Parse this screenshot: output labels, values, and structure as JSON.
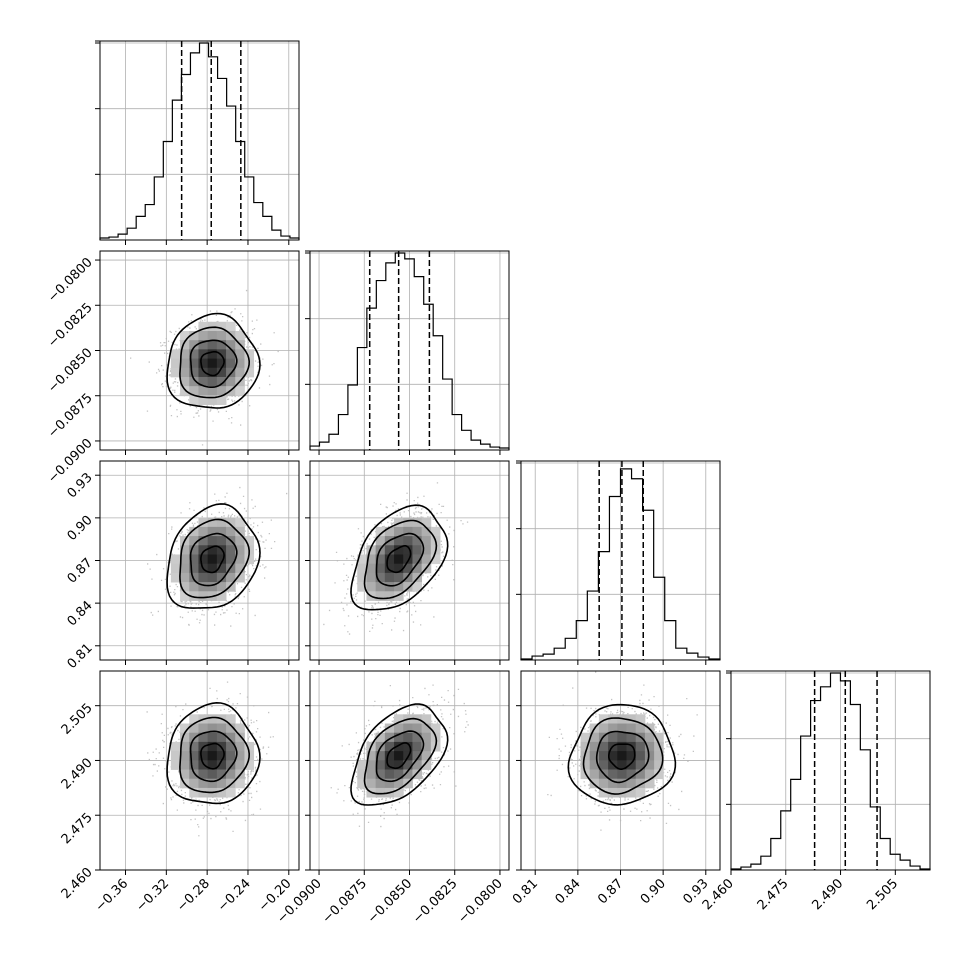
{
  "chart_data": {
    "type": "corner",
    "title": "",
    "grid": true,
    "parameters": [
      {
        "range": [
          -0.385,
          -0.19
        ],
        "ticks": [
          -0.36,
          -0.32,
          -0.28,
          -0.24,
          -0.2
        ],
        "tick_labels": [
          "−0.36",
          "−0.32",
          "−0.28",
          "−0.24",
          "−0.20"
        ],
        "quantiles": [
          -0.305,
          -0.276,
          -0.247
        ],
        "histogram": [
          0.01,
          0.015,
          0.03,
          0.06,
          0.12,
          0.18,
          0.32,
          0.5,
          0.71,
          0.84,
          0.95,
          1.0,
          0.93,
          0.82,
          0.68,
          0.5,
          0.32,
          0.19,
          0.12,
          0.05,
          0.02,
          0.01
        ]
      },
      {
        "range": [
          -0.0905,
          -0.0795
        ],
        "ticks": [
          -0.09,
          -0.0875,
          -0.085,
          -0.0825,
          -0.08
        ],
        "tick_labels": [
          "−0.0900",
          "−0.0875",
          "−0.0850",
          "−0.0825",
          "−0.0800"
        ],
        "quantiles": [
          -0.0872,
          -0.0856,
          -0.0839
        ],
        "histogram": [
          0.02,
          0.04,
          0.08,
          0.18,
          0.33,
          0.52,
          0.72,
          0.86,
          0.95,
          1.0,
          0.97,
          0.88,
          0.74,
          0.58,
          0.36,
          0.18,
          0.1,
          0.05,
          0.03,
          0.015,
          0.01
        ]
      },
      {
        "range": [
          0.8,
          0.94
        ],
        "ticks": [
          0.81,
          0.84,
          0.87,
          0.9,
          0.93
        ],
        "tick_labels": [
          "0.81",
          "0.84",
          "0.87",
          "0.90",
          "0.93"
        ],
        "quantiles": [
          0.855,
          0.871,
          0.886
        ],
        "histogram": [
          0.005,
          0.02,
          0.03,
          0.06,
          0.11,
          0.2,
          0.35,
          0.55,
          0.83,
          0.97,
          0.92,
          0.76,
          0.42,
          0.2,
          0.06,
          0.035,
          0.015,
          0.005
        ]
      },
      {
        "range": [
          2.46,
          2.5145
        ],
        "ticks": [
          2.46,
          2.475,
          2.49,
          2.505
        ],
        "tick_labels": [
          "2.460",
          "2.475",
          "2.490",
          "2.505"
        ],
        "quantiles": [
          2.4829,
          2.4913,
          2.5
        ],
        "histogram": [
          0.005,
          0.015,
          0.03,
          0.07,
          0.16,
          0.3,
          0.46,
          0.68,
          0.86,
          0.93,
          1.0,
          0.96,
          0.84,
          0.61,
          0.32,
          0.16,
          0.08,
          0.05,
          0.02,
          0.005
        ]
      }
    ],
    "pairs": [
      {
        "x": 0,
        "y": 1,
        "mean": [
          -0.275,
          -0.0857
        ],
        "sd": [
          0.019,
          0.0011
        ],
        "corr": 0.05
      },
      {
        "x": 0,
        "y": 2,
        "mean": [
          -0.275,
          0.871
        ],
        "sd": [
          0.019,
          0.0155
        ],
        "corr": 0.2
      },
      {
        "x": 1,
        "y": 2,
        "mean": [
          -0.0856,
          0.871
        ],
        "sd": [
          0.0011,
          0.0155
        ],
        "corr": 0.4
      },
      {
        "x": 0,
        "y": 3,
        "mean": [
          -0.275,
          2.4913
        ],
        "sd": [
          0.019,
          0.0058
        ],
        "corr": 0.05
      },
      {
        "x": 1,
        "y": 3,
        "mean": [
          -0.0856,
          2.4913
        ],
        "sd": [
          0.0011,
          0.0058
        ],
        "corr": 0.45
      },
      {
        "x": 2,
        "y": 3,
        "mean": [
          0.871,
          2.4913
        ],
        "sd": [
          0.0155,
          0.0058
        ],
        "corr": 0.05
      }
    ],
    "contour_levels_sigma": [
      0.5,
      1.0,
      1.5,
      2.0
    ]
  }
}
